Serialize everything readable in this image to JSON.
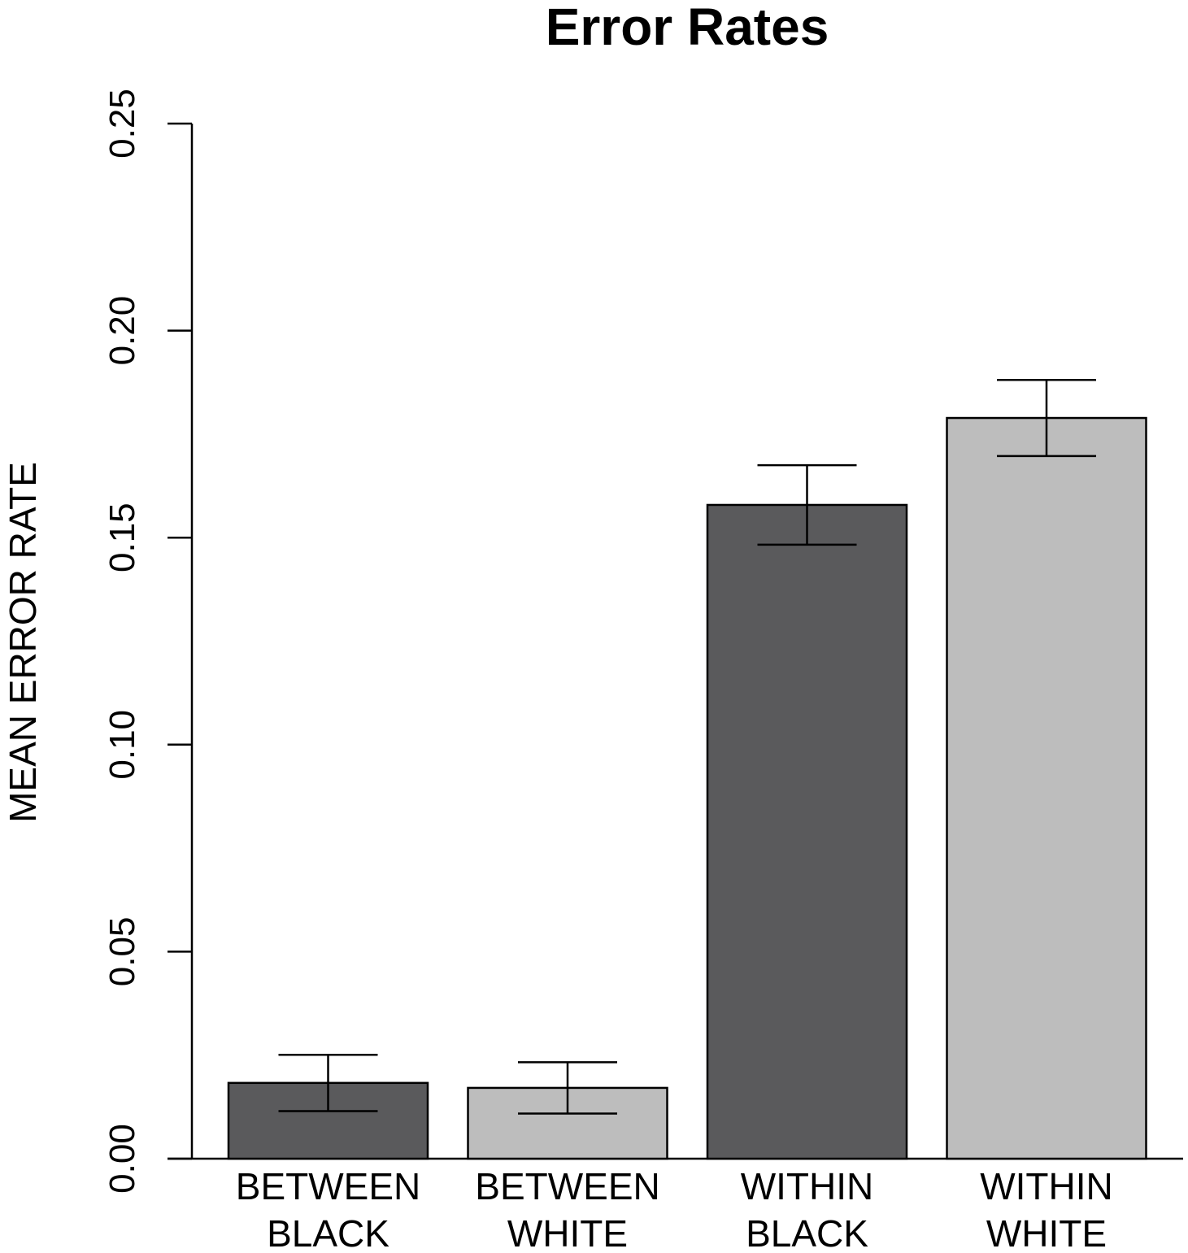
{
  "chart_data": {
    "type": "bar",
    "title": "Error Rates",
    "ylabel": "MEAN ERROR RATE",
    "xlabel": "",
    "ylim": [
      0,
      0.25
    ],
    "yticks": [
      "0.00",
      "0.05",
      "0.10",
      "0.15",
      "0.20",
      "0.25"
    ],
    "categories": [
      [
        "BETWEEN",
        "BLACK"
      ],
      [
        "BETWEEN",
        "WHITE"
      ],
      [
        "WITHIN",
        "BLACK"
      ],
      [
        "WITHIN",
        "WHITE"
      ]
    ],
    "values": [
      0.0183,
      0.0171,
      0.1579,
      0.1789
    ],
    "error_bars": [
      {
        "low": 0.0115,
        "high": 0.0251
      },
      {
        "low": 0.0109,
        "high": 0.0233
      },
      {
        "low": 0.1483,
        "high": 0.1675
      },
      {
        "low": 0.1697,
        "high": 0.1881
      }
    ],
    "colors": [
      "#5a5a5c",
      "#bdbdbd",
      "#5a5a5c",
      "#bdbdbd"
    ],
    "grid": false,
    "legend": "none"
  }
}
